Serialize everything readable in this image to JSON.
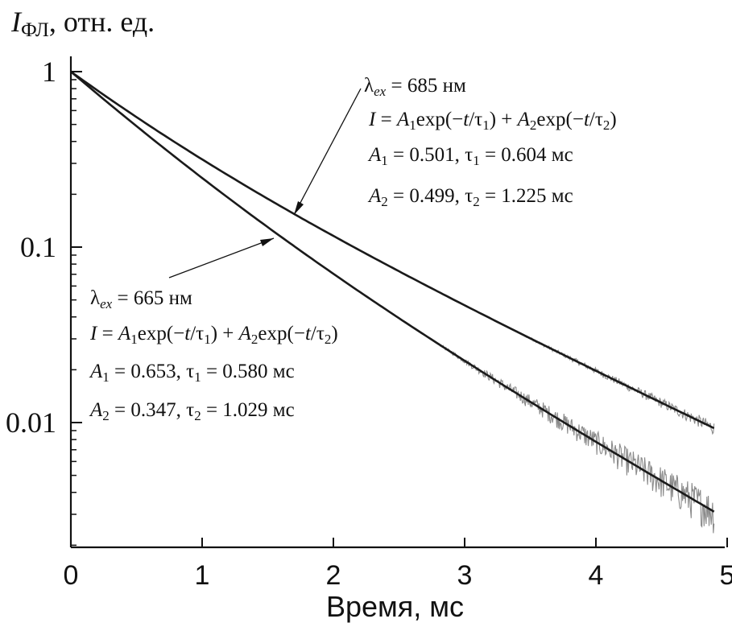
{
  "chart_data": {
    "type": "line",
    "xlabel": "Время, мс",
    "ylabel": {
      "symbol": "I",
      "subscript": "ФЛ",
      "rest": ", отн. ед."
    },
    "xlim": [
      0,
      5
    ],
    "ylim": [
      0.002,
      1
    ],
    "y_scale": "log",
    "x_ticks": [
      "0",
      "1",
      "2",
      "3",
      "4",
      "5"
    ],
    "y_ticks": [
      "1",
      "0.1",
      "0.01"
    ],
    "grid": false,
    "x_max_data": 4.9,
    "series": [
      {
        "A1": 0.501,
        "tau1": 0.604,
        "A2": 0.499,
        "tau2": 1.225,
        "noise_start": 3.2,
        "noise_amp": 0.04
      },
      {
        "A1": 0.653,
        "tau1": 0.58,
        "A2": 0.347,
        "tau2": 1.029,
        "noise_start": 2.7,
        "noise_amp": 0.12
      }
    ],
    "annotations": [
      {
        "lambda_label": "λ",
        "lambda_sub": "ex",
        "lambda_value": " = 685 нм",
        "formula": {
          "I": "I",
          "eq": " = ",
          "A1": "A",
          "s1": "1",
          "exp1": "exp(−",
          "t1": "t",
          "div1": "/τ",
          "ts1": "1",
          "plus": ") + ",
          "A2": "A",
          "s2": "2",
          "exp2": "exp(−",
          "t2": "t",
          "div2": "/τ",
          "ts2": "2",
          "close": ")"
        },
        "params1": {
          "A": "A",
          "sub": "1",
          "text": " = 0.501, τ",
          "tsub": "1",
          "value": " = 0.604 мс"
        },
        "params2": {
          "A": "A",
          "sub": "2",
          "text": " = 0.499, τ",
          "tsub": "2",
          "value": " = 1.225 мс"
        }
      },
      {
        "lambda_label": "λ",
        "lambda_sub": "ex",
        "lambda_value": " = 665 нм",
        "formula": {
          "I": "I",
          "eq": " = ",
          "A1": "A",
          "s1": "1",
          "exp1": "exp(−",
          "t1": "t",
          "div1": "/τ",
          "ts1": "1",
          "plus": ") + ",
          "A2": "A",
          "s2": "2",
          "exp2": "exp(−",
          "t2": "t",
          "div2": "/τ",
          "ts2": "2",
          "close": ")"
        },
        "params1": {
          "A": "A",
          "sub": "1",
          "text": " = 0.653, τ",
          "tsub": "1",
          "value": " = 0.580 мс"
        },
        "params2": {
          "A": "A",
          "sub": "2",
          "text": " = 0.347, τ",
          "tsub": "2",
          "value": " = 1.029 мс"
        }
      }
    ]
  },
  "colors": {
    "fit_line": "#1a1a1a",
    "noise": "#8a8a8a",
    "axis": "#111111"
  }
}
